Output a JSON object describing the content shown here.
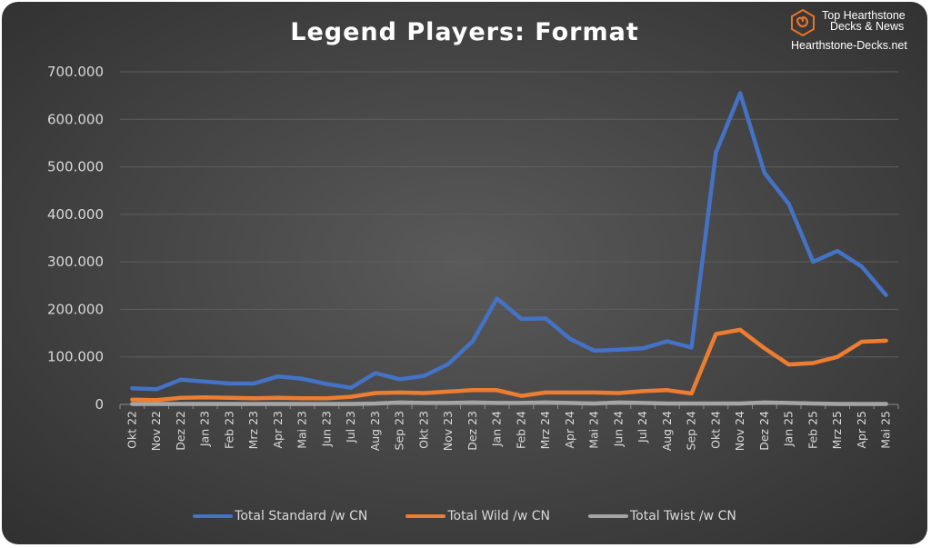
{
  "title": "Legend Players: Format",
  "brand": {
    "line1": "Top Hearthstone",
    "line2": "Decks & News",
    "url": "Hearthstone-Decks.net",
    "logo_icon": "hexagon-swirl-icon",
    "logo_color": "#e8732b"
  },
  "chart_data": {
    "type": "line",
    "title": "Legend Players: Format",
    "xlabel": "",
    "ylabel": "",
    "ylim": [
      0,
      700000
    ],
    "yticks": [
      0,
      100000,
      200000,
      300000,
      400000,
      500000,
      600000,
      700000
    ],
    "ytick_labels": [
      "0",
      "100.000",
      "200.000",
      "300.000",
      "400.000",
      "500.000",
      "600.000",
      "700.000"
    ],
    "grid": true,
    "legend_position": "bottom",
    "categories": [
      "Okt 22",
      "Nov 22",
      "Dez 22",
      "Jan 23",
      "Feb 23",
      "Mrz 23",
      "Apr 23",
      "Mai 23",
      "Jun 23",
      "Jul 23",
      "Aug 23",
      "Sep 23",
      "Okt 23",
      "Nov 23",
      "Dez 23",
      "Jan 24",
      "Feb 24",
      "Mrz 24",
      "Apr 24",
      "Mai 24",
      "Jun 24",
      "Jul 24",
      "Aug 24",
      "Sep 24",
      "Okt 24",
      "Nov 24",
      "Dez 24",
      "Jan 25",
      "Feb 25",
      "Mrz 25",
      "Apr 25",
      "Mai 25"
    ],
    "series": [
      {
        "name": "Total Standard /w CN",
        "color": "#4472c4",
        "values": [
          34000,
          32000,
          52000,
          48000,
          44000,
          44000,
          59000,
          54000,
          43000,
          35000,
          66000,
          53000,
          60000,
          85000,
          133000,
          223000,
          180000,
          181000,
          138000,
          113000,
          115000,
          118000,
          133000,
          120000,
          530000,
          655000,
          487000,
          422000,
          300000,
          323000,
          290000,
          230000
        ]
      },
      {
        "name": "Total Wild /w CN",
        "color": "#ed7d31",
        "values": [
          10000,
          9000,
          14000,
          15000,
          14000,
          13000,
          14000,
          13000,
          13000,
          16000,
          24000,
          25000,
          24000,
          27000,
          30000,
          30000,
          18000,
          25000,
          25000,
          25000,
          24000,
          28000,
          30000,
          23000,
          148000,
          157000,
          118000,
          84000,
          87000,
          100000,
          132000,
          134000
        ]
      },
      {
        "name": "Total Twist /w CN",
        "color": "#a5a5a5",
        "values": [
          1000,
          1000,
          1000,
          1000,
          1000,
          1000,
          1000,
          1000,
          1000,
          1000,
          2000,
          4000,
          3000,
          3000,
          4000,
          3000,
          3000,
          4000,
          3000,
          2000,
          4000,
          3000,
          2000,
          2000,
          2000,
          2000,
          4000,
          3000,
          2000,
          1000,
          1000,
          1000
        ]
      }
    ]
  }
}
